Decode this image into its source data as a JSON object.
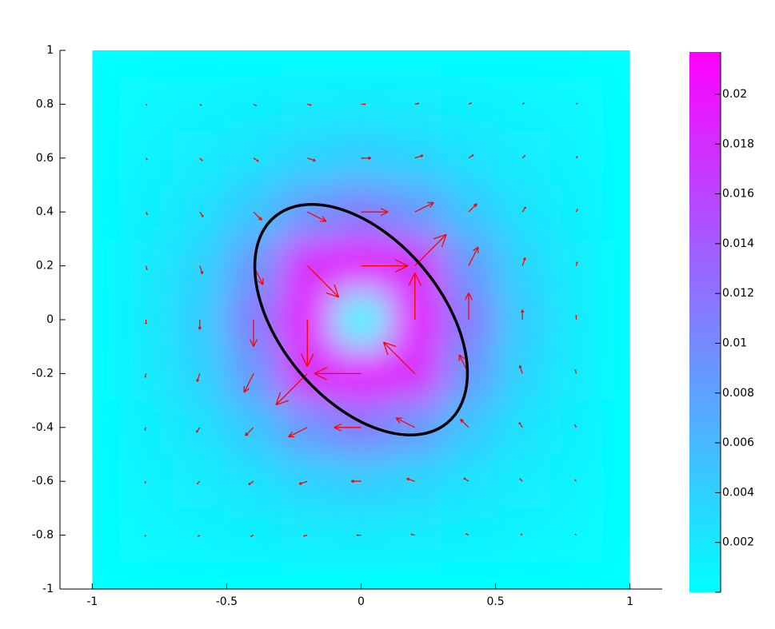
{
  "chart_data": {
    "type": "quiver",
    "xlim": [
      -1.12,
      1.12
    ],
    "ylim": [
      -1,
      1
    ],
    "xticks": [
      -1,
      -0.5,
      0,
      0.5,
      1
    ],
    "yticks": [
      -1,
      -0.8,
      -0.6,
      -0.4,
      -0.2,
      0,
      0.2,
      0.4,
      0.6,
      0.8,
      1
    ],
    "extent": [
      -1,
      1,
      -1,
      1
    ],
    "arrow_color": "#ff0000",
    "quiver": {
      "x": [
        -0.8,
        -0.6,
        -0.4,
        -0.2,
        0,
        0.2,
        0.4,
        0.6,
        0.8
      ],
      "y": [
        -0.8,
        -0.6,
        -0.4,
        -0.2,
        0,
        0.2,
        0.4,
        0.6,
        0.8
      ],
      "u": [
        [
          -0.00046,
          -0.00075,
          -0.00117,
          -0.00161,
          -0.00182,
          -0.00161,
          -0.00117,
          -0.00075,
          -0.00046
        ],
        [
          -0.00056,
          -0.00108,
          -0.00204,
          -0.00338,
          -0.00413,
          -0.00338,
          -0.00204,
          -0.00108,
          -0.00056
        ],
        [
          -0.00058,
          -0.00136,
          -0.00343,
          -0.00788,
          -0.01124,
          -0.00788,
          -0.00343,
          -0.00136,
          -0.00058
        ],
        [
          -0.0004,
          -0.00113,
          -0.00394,
          -0.01308,
          -0.01954,
          -0.01308,
          -0.00394,
          -0.00113,
          -0.0004
        ],
        [
          0,
          0,
          0,
          0,
          0,
          0,
          0,
          0,
          0
        ],
        [
          0.0004,
          0.00113,
          0.00394,
          0.01308,
          0.01954,
          0.01308,
          0.00394,
          0.00113,
          0.0004
        ],
        [
          0.00058,
          0.00136,
          0.00343,
          0.00788,
          0.01124,
          0.00788,
          0.00343,
          0.00136,
          0.00058
        ],
        [
          0.00056,
          0.00108,
          0.00204,
          0.00338,
          0.00413,
          0.00338,
          0.00204,
          0.00108,
          0.00056
        ],
        [
          0.00046,
          0.00075,
          0.00117,
          0.00161,
          0.00182,
          0.00161,
          0.00117,
          0.00075,
          0.00046
        ]
      ],
      "v": [
        [
          -0.00046,
          -0.00056,
          -0.00058,
          -0.0004,
          0,
          0.0004,
          0.00058,
          0.00056,
          0.00046
        ],
        [
          -0.00075,
          -0.00108,
          -0.00136,
          -0.00113,
          0,
          0.00113,
          0.00136,
          0.00108,
          0.00075
        ],
        [
          -0.00117,
          -0.00204,
          -0.00343,
          -0.00394,
          0,
          0.00394,
          0.00343,
          0.00204,
          0.00117
        ],
        [
          -0.00161,
          -0.00338,
          -0.00788,
          -0.01308,
          0,
          0.01308,
          0.00788,
          0.00338,
          0.00161
        ],
        [
          -0.00182,
          -0.00413,
          -0.01124,
          -0.01954,
          0,
          0.01954,
          0.01124,
          0.00413,
          0.00182
        ],
        [
          -0.00161,
          -0.00338,
          -0.00788,
          -0.01308,
          0,
          0.01308,
          0.00788,
          0.00338,
          0.00161
        ],
        [
          -0.00117,
          -0.00204,
          -0.00343,
          -0.00394,
          0,
          0.00394,
          0.00343,
          0.00204,
          0.00117
        ],
        [
          -0.00075,
          -0.00108,
          -0.00136,
          -0.00113,
          0,
          0.00113,
          0.00136,
          0.00108,
          0.00075
        ],
        [
          -0.00046,
          -0.00056,
          -0.00058,
          -0.0004,
          0,
          0.0004,
          0.00058,
          0.00056,
          0.00046
        ]
      ]
    },
    "ellipse": {
      "center": [
        0,
        0
      ],
      "semi_axes": [
        0.5,
        0.3
      ],
      "angle": -50,
      "color": "#000000"
    },
    "colorbar": {
      "clim": [
        0,
        0.0217
      ],
      "colormap": [
        "#00ffff",
        "#ff00ff"
      ],
      "ticks": [
        0.002,
        0.004,
        0.006,
        0.008,
        0.01,
        0.012,
        0.014,
        0.016,
        0.018,
        0.02
      ]
    }
  }
}
